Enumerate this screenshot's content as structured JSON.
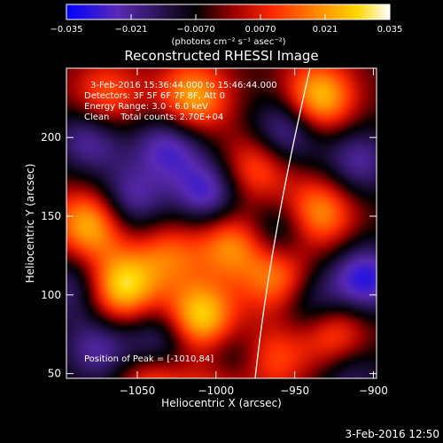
{
  "chart_data": {
    "type": "heatmap",
    "title": "Reconstructed RHESSI Image",
    "xlabel": "Heliocentric X (arcsec)",
    "ylabel": "Heliocentric Y (arcsec)",
    "xlim": [
      -1095,
      -898
    ],
    "ylim": [
      47,
      244
    ],
    "x_ticks": [
      -1050,
      -1000,
      -950,
      -900
    ],
    "x_tick_labels": [
      "−1050",
      "−1000",
      "−950",
      "−900"
    ],
    "y_ticks": [
      50,
      100,
      150,
      200
    ],
    "y_tick_labels": [
      "50",
      "100",
      "150",
      "200"
    ],
    "colorbar": {
      "range": [
        -0.035,
        0.035
      ],
      "ticks": [
        -0.035,
        -0.021,
        -0.007,
        0.007,
        0.021,
        0.035
      ],
      "tick_labels": [
        "−0.035",
        "−0.021",
        "−0.0070",
        "0.0070",
        "0.021",
        "0.035"
      ],
      "unit_label": "(photons cm⁻² s⁻¹ asec⁻²)",
      "colors": [
        "#0000ff",
        "#5a2ab5",
        "#000000",
        "#a00000",
        "#ff2a00",
        "#ff8c00",
        "#ffd800",
        "#ffffff"
      ]
    },
    "info_lines": [
      "3-Feb-2016 15:36:44.000 to 15:46:44.000",
      "Detectors: 3F 5F 6F 7F 8F, Att 0",
      "Energy Range: 3.0 - 6.0 keV",
      "Clean    Total counts: 2.70E+04"
    ],
    "peak_label": "Position of Peak = [-1010,84]",
    "peak": {
      "x": -1010,
      "y": 84
    },
    "features": [
      {
        "x": -1060,
        "y": 105,
        "value": 0.034
      },
      {
        "x": -1010,
        "y": 85,
        "value": 0.035
      },
      {
        "x": -935,
        "y": 225,
        "value": 0.032
      },
      {
        "x": -1080,
        "y": 145,
        "value": 0.03
      },
      {
        "x": -1015,
        "y": 225,
        "value": 0.028
      },
      {
        "x": -935,
        "y": 152,
        "value": 0.026
      },
      {
        "x": -1040,
        "y": 45,
        "value": 0.02
      },
      {
        "x": -1070,
        "y": 225,
        "value": 0.02
      },
      {
        "x": -990,
        "y": 132,
        "value": 0.024
      },
      {
        "x": -960,
        "y": 110,
        "value": 0.025
      },
      {
        "x": -925,
        "y": 75,
        "value": 0.022
      },
      {
        "x": -965,
        "y": 60,
        "value": 0.018
      },
      {
        "x": -975,
        "y": 180,
        "value": 0.02
      },
      {
        "x": -1030,
        "y": 125,
        "value": 0.018
      },
      {
        "x": -1000,
        "y": 40,
        "value": 0.016
      },
      {
        "x": -1030,
        "y": 195,
        "value": -0.022
      },
      {
        "x": -1005,
        "y": 165,
        "value": -0.024
      },
      {
        "x": -1080,
        "y": 200,
        "value": -0.02
      },
      {
        "x": -955,
        "y": 205,
        "value": -0.022
      },
      {
        "x": -905,
        "y": 110,
        "value": -0.026
      },
      {
        "x": -1075,
        "y": 65,
        "value": -0.018
      },
      {
        "x": -1035,
        "y": 70,
        "value": -0.02
      },
      {
        "x": -990,
        "y": 60,
        "value": -0.015
      },
      {
        "x": -940,
        "y": 95,
        "value": -0.018
      },
      {
        "x": -1055,
        "y": 160,
        "value": -0.02
      },
      {
        "x": -960,
        "y": 140,
        "value": -0.016
      },
      {
        "x": -910,
        "y": 185,
        "value": -0.018
      },
      {
        "x": -915,
        "y": 50,
        "value": -0.014
      },
      {
        "x": -1090,
        "y": 105,
        "value": -0.016
      }
    ]
  },
  "footer": {
    "timestamp": "3-Feb-2016 12:50"
  }
}
